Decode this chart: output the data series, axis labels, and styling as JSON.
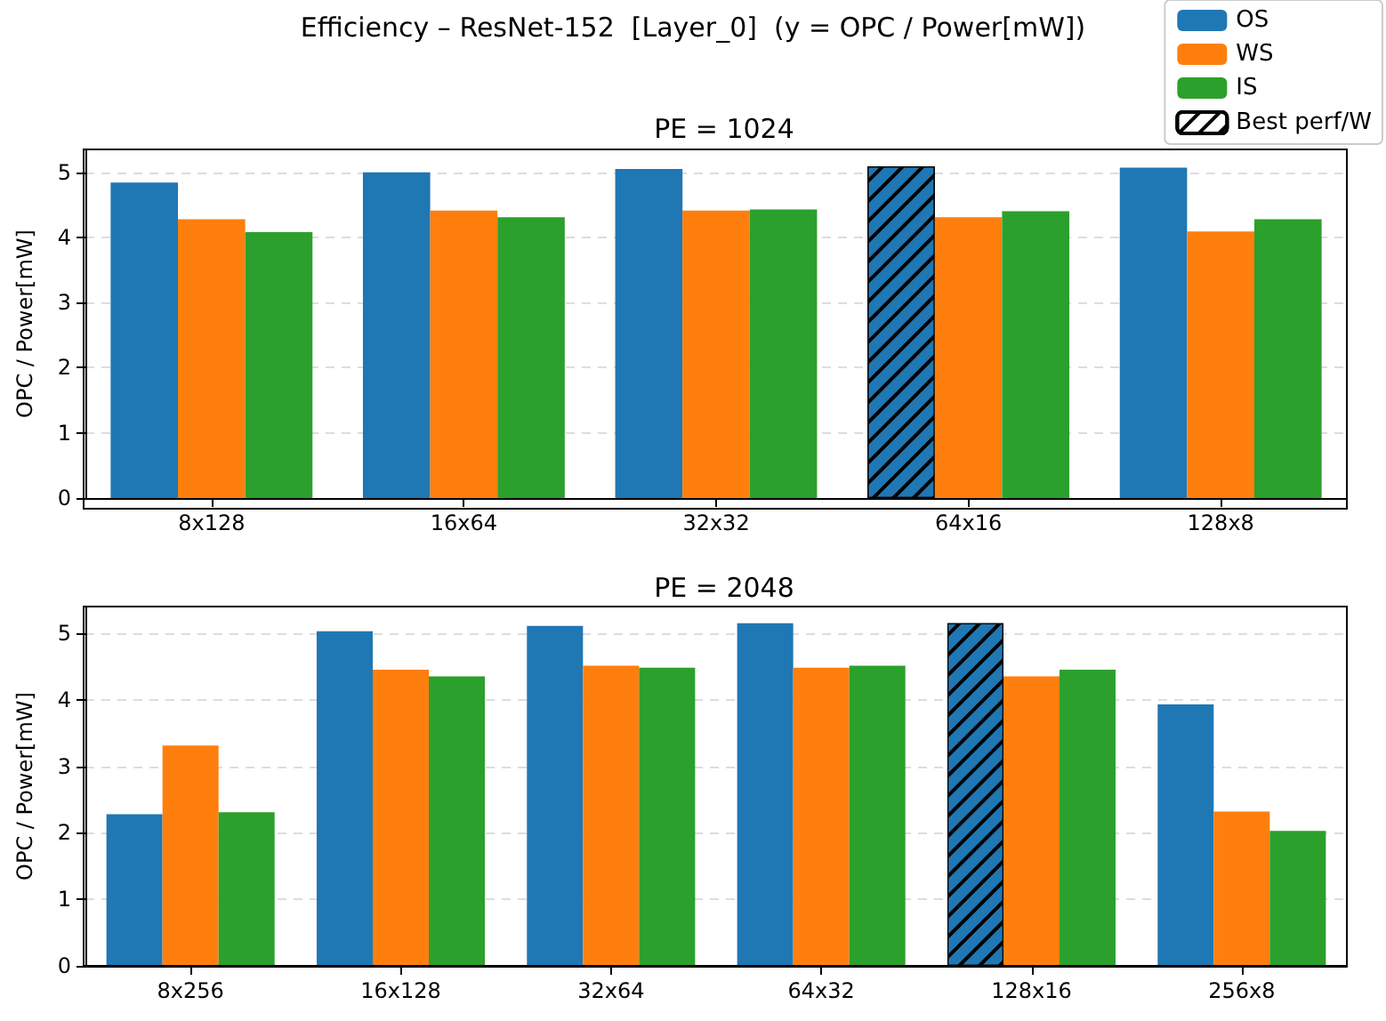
{
  "chart_data": [
    {
      "type": "bar",
      "title": "PE = 1024",
      "ylabel": "OPC / Power[mW]",
      "annotations": [
        "Efficiency – ResNet-152  [Layer_0]  (y = OPC / Power[mW])",
        "Best perf/W"
      ],
      "categories": [
        "8x128",
        "16x64",
        "32x32",
        "64x16",
        "128x8"
      ],
      "series": [
        {
          "name": "OS",
          "color": "#1f77b4",
          "values": [
            4.84,
            5.0,
            5.05,
            5.09,
            5.07
          ]
        },
        {
          "name": "WS",
          "color": "#ff7f0e",
          "values": [
            4.28,
            4.41,
            4.41,
            4.31,
            4.09
          ]
        },
        {
          "name": "IS",
          "color": "#2ca02c",
          "values": [
            4.08,
            4.31,
            4.43,
            4.4,
            4.28
          ]
        }
      ],
      "ylim": [
        0,
        5.35
      ],
      "yticks": [
        0,
        1,
        2,
        3,
        4,
        5
      ],
      "grid": "y",
      "legend": "top right"
    },
    {
      "type": "bar",
      "title": "PE = 2048",
      "ylabel": "OPC / Power[mW]",
      "categories": [
        "8x256",
        "16x128",
        "32x64",
        "64x32",
        "128x16",
        "256x8"
      ],
      "series": [
        {
          "color": "#1f77b4",
          "values": [
            2.28,
            5.03,
            5.11,
            5.15,
            5.15,
            3.93
          ]
        },
        {
          "color": "#ff7f0e",
          "values": [
            3.31,
            4.45,
            4.51,
            4.48,
            4.35,
            2.32
          ]
        },
        {
          "color": "#2ca02c",
          "values": [
            2.31,
            4.35,
            4.48,
            4.51,
            4.45,
            2.03
          ]
        }
      ],
      "ylim": [
        0,
        5.4
      ],
      "yticks": [
        0,
        1,
        2,
        3,
        4,
        5
      ],
      "grid": "y",
      "legend": false
    }
  ]
}
